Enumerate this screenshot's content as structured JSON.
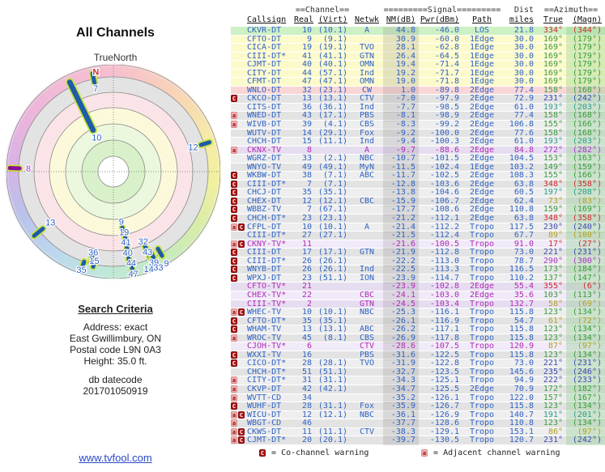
{
  "left": {
    "title": "All Channels",
    "true_north": "TrueNorth",
    "search": {
      "heading": "Search Criteria",
      "lines": [
        "Address: exact",
        "East Gwillimbury, ON",
        "Postal code L9N 0A3",
        "Height: 35.0 ft."
      ],
      "db_label": "db datecode",
      "db_value": "201701050919"
    },
    "link": "www.tvfool.com"
  },
  "radar": {
    "north_label": "N",
    "rings": [
      {
        "r": 132,
        "fill": "none"
      },
      {
        "r": 117,
        "fill": "#e3e3e3"
      },
      {
        "r": 98,
        "fill": "#fbe4e7"
      },
      {
        "r": 79,
        "fill": "#fcf9da"
      },
      {
        "r": 59,
        "fill": "#ecf8de"
      },
      {
        "r": 39,
        "fill": "#d9f1ca"
      },
      {
        "r": 19,
        "fill": "#ffffff"
      }
    ],
    "markers": [
      {
        "label": "N",
        "az": 350,
        "label_r": 125,
        "color": "north"
      },
      {
        "label": "7",
        "az": 348,
        "bar": [
          112,
          124
        ],
        "label_r": 105,
        "color": "blue"
      },
      {
        "label": "10",
        "az": 334,
        "bar": [
          57,
          123
        ],
        "label_r": 47,
        "color": "blue",
        "thick": true
      },
      {
        "label": "12",
        "az": 73,
        "bar": [
          113,
          124
        ],
        "label_r": 103,
        "color": "blue"
      },
      {
        "label": "8",
        "az": 272,
        "bar": [
          116,
          128
        ],
        "label_r": 105,
        "color": "purple"
      },
      {
        "label": "13",
        "az": 231,
        "bar": [
          112,
          126
        ],
        "label_r": 100,
        "color": "blue"
      },
      {
        "label": "9",
        "az": 171,
        "bar": [
          70,
          78
        ],
        "label_r": 63,
        "color": "blue"
      },
      {
        "label": "19",
        "az": 170,
        "bar": [
          83,
          91
        ],
        "label_r": 76,
        "color": "blue"
      },
      {
        "label": "41",
        "az": 170,
        "bar": [
          95,
          103
        ],
        "label_r": 89,
        "color": "blue"
      },
      {
        "label": "40",
        "az": 170,
        "bar": [
          108,
          114
        ],
        "label_r": 102,
        "color": "blue"
      },
      {
        "label": "44",
        "az": 169,
        "bar": [
          120,
          126
        ],
        "label_r": 115,
        "color": "blue"
      },
      {
        "label": "47",
        "az": 169,
        "label_r": 129,
        "color": "blue"
      },
      {
        "label": "36",
        "az": 194,
        "bar": [
          107,
          113
        ],
        "label_r": 103,
        "color": "blue"
      },
      {
        "label": "15",
        "az": 192,
        "bar": [
          114,
          120
        ],
        "label_r": 113,
        "color": "blue"
      },
      {
        "label": "35",
        "az": 198,
        "bar": [
          117,
          125
        ],
        "label_r": 128,
        "color": "blue"
      },
      {
        "label": "32",
        "az": 157,
        "bar": [
          99,
          105
        ],
        "label_r": 94,
        "color": "blue"
      },
      {
        "label": "43",
        "az": 157,
        "bar": [
          110,
          116
        ],
        "label_r": 108,
        "color": "blue"
      },
      {
        "label": "39",
        "az": 156,
        "bar": [
          115,
          121
        ],
        "label_r": 123,
        "color": "blue"
      },
      {
        "label": "14",
        "az": 160,
        "label_r": 128,
        "color": "blue"
      },
      {
        "label": "33",
        "az": 155,
        "bar": [
          108,
          118
        ],
        "label_r": 131,
        "color": "blue"
      },
      {
        "label": "9",
        "az": 150,
        "bar": [
          110,
          120
        ],
        "label_r": 136,
        "color": "blue"
      }
    ],
    "bar_colors": {
      "blue": "#1c5ca8",
      "purple": "#8c109c",
      "halo": "#c9e23c"
    },
    "label_colors": {
      "blue": "#2f62c4",
      "purple": "#a633c6",
      "north": "#d03030"
    }
  },
  "table": {
    "group_headers": {
      "channel": "==Channel==",
      "signal": "=========Signal=========",
      "dist": "Dist",
      "azimuth": "==Azimuth=="
    },
    "columns": [
      "Callsign",
      "Real",
      "(Virt)",
      "Netwk",
      "NM(dB)",
      "Pwr(dBm)",
      "Path",
      "miles",
      "True",
      "(Magn)"
    ],
    "row_fields": [
      "warn",
      "callsign",
      "real",
      "virt",
      "netwk",
      "nm_db",
      "pwr_dbm",
      "path",
      "miles",
      "az_true",
      "az_magn",
      "bg",
      "dir_color",
      "type"
    ],
    "rows": [
      [
        "",
        "CKVR-DT",
        "10",
        "(10.1)",
        "A",
        "44.8",
        "-46.0",
        "LOS",
        "21.8",
        "334°",
        "(344°)",
        "g",
        "r",
        "d"
      ],
      [
        "",
        "CFTO-DT",
        "9",
        "(9.1)",
        "",
        "30.9",
        "-60.0",
        "1Edge",
        "30.0",
        "169°",
        "(179°)",
        "y",
        "g",
        "d"
      ],
      [
        "",
        "CICA-DT",
        "19",
        "(19.1)",
        "TVO",
        "28.1",
        "-62.8",
        "1Edge",
        "30.0",
        "169°",
        "(179°)",
        "y",
        "g",
        "d"
      ],
      [
        "",
        "CIII-DT*",
        "41",
        "(41.1)",
        "GTN",
        "26.4",
        "-64.5",
        "1Edge",
        "30.0",
        "169°",
        "(179°)",
        "y",
        "g",
        "d"
      ],
      [
        "",
        "CJMT-DT",
        "40",
        "(40.1)",
        "OMN",
        "19.4",
        "-71.4",
        "1Edge",
        "30.0",
        "169°",
        "(179°)",
        "y",
        "g",
        "d"
      ],
      [
        "",
        "CITY-DT",
        "44",
        "(57.1)",
        "Ind",
        "19.2",
        "-71.7",
        "1Edge",
        "30.0",
        "169°",
        "(179°)",
        "y",
        "g",
        "d"
      ],
      [
        "",
        "CFMT-DT",
        "47",
        "(47.1)",
        "OMN",
        "19.0",
        "-71.8",
        "1Edge",
        "30.0",
        "169°",
        "(179°)",
        "y",
        "g",
        "d"
      ],
      [
        "",
        "WNLO-DT",
        "32",
        "(23.1)",
        "CW",
        "1.0",
        "-89.8",
        "2Edge",
        "77.4",
        "158°",
        "(168°)",
        "p",
        "g",
        "d"
      ],
      [
        "C",
        "CKCO-DT",
        "13",
        "(13.1)",
        "CTV",
        "-7.0",
        "-97.9",
        "2Edge",
        "72.9",
        "231°",
        "(242°)",
        "d",
        "n",
        "d"
      ],
      [
        "",
        "CITS-DT",
        "36",
        "(36.1)",
        "Ind",
        "-7.7",
        "-98.5",
        "2Edge",
        "61.0",
        "193°",
        "(203°)",
        "l",
        "t",
        "d"
      ],
      [
        "A",
        "WNED-DT",
        "43",
        "(17.1)",
        "PBS",
        "-8.1",
        "-98.9",
        "2Edge",
        "77.4",
        "158°",
        "(168°)",
        "d",
        "g",
        "d"
      ],
      [
        "A",
        "WIVB-DT",
        "39",
        "(4.1)",
        "CBS",
        "-8.3",
        "-99.2",
        "2Edge",
        "106.8",
        "155°",
        "(166°)",
        "l",
        "g",
        "d"
      ],
      [
        "",
        "WUTV-DT",
        "14",
        "(29.1)",
        "Fox",
        "-9.2",
        "-100.0",
        "2Edge",
        "77.6",
        "158°",
        "(168°)",
        "d",
        "g",
        "d"
      ],
      [
        "",
        "CHCH-DT",
        "15",
        "(11.1)",
        "Ind",
        "-9.4",
        "-100.3",
        "2Edge",
        "61.0",
        "193°",
        "(203°)",
        "l",
        "t",
        "d"
      ],
      [
        "A",
        "CKNX-TV",
        "8",
        "",
        "A",
        "-9.7",
        "-88.6",
        "2Edge",
        "84.8",
        "272°",
        "(282°)",
        "ad",
        "p",
        "a"
      ],
      [
        "",
        "WGRZ-DT",
        "33",
        "(2.1)",
        "NBC",
        "-10.7",
        "-101.5",
        "2Edge",
        "104.5",
        "153°",
        "(163°)",
        "l",
        "g",
        "d"
      ],
      [
        "",
        "WNYO-TV",
        "49",
        "(49.1)",
        "MyN",
        "-11.5",
        "-102.4",
        "1Edge",
        "103.2",
        "149°",
        "(159°)",
        "d",
        "g",
        "d"
      ],
      [
        "C",
        "WKBW-DT",
        "38",
        "(7.1)",
        "ABC",
        "-11.7",
        "-102.5",
        "2Edge",
        "108.3",
        "155°",
        "(166°)",
        "l",
        "g",
        "d"
      ],
      [
        "C",
        "CIII-DT*",
        "7",
        "(7.1)",
        "",
        "-12.8",
        "-103.6",
        "2Edge",
        "63.8",
        "348°",
        "(358°)",
        "d",
        "r",
        "d"
      ],
      [
        "C",
        "CHCJ-DT",
        "35",
        "(35.1)",
        "",
        "-13.8",
        "-104.6",
        "2Edge",
        "60.5",
        "197°",
        "(208°)",
        "l",
        "t",
        "d"
      ],
      [
        "C",
        "CHEX-DT",
        "12",
        "(12.1)",
        "CBC",
        "-15.9",
        "-106.7",
        "2Edge",
        "62.4",
        "73°",
        "(83°)",
        "d",
        "y",
        "d"
      ],
      [
        "C",
        "WBBZ-TV",
        "7",
        "(67.1)",
        "",
        "-17.7",
        "-108.6",
        "2Edge",
        "110.8",
        "159°",
        "(169°)",
        "l",
        "g",
        "d"
      ],
      [
        "C",
        "CHCH-DT*",
        "23",
        "(23.1)",
        "",
        "-21.2",
        "-112.1",
        "2Edge",
        "63.8",
        "348°",
        "(358°)",
        "d",
        "r",
        "d"
      ],
      [
        "AC",
        "CFPL-DT",
        "10",
        "(10.1)",
        "A",
        "-21.4",
        "-112.2",
        "Tropo",
        "117.5",
        "230°",
        "(240°)",
        "l",
        "n",
        "d"
      ],
      [
        "",
        "CIII-DT*",
        "27",
        "(27.1)",
        "",
        "-21.5",
        "-112.4",
        "Tropo",
        "67.7",
        "89°",
        "(100°)",
        "d",
        "y",
        "d"
      ],
      [
        "AC",
        "CKNY-TV*",
        "11",
        "",
        "",
        "-21.6",
        "-100.5",
        "Tropo",
        "91.0",
        "17°",
        "(27°)",
        "al",
        "r",
        "a"
      ],
      [
        "C",
        "CIII-DT",
        "17",
        "(17.1)",
        "GTN",
        "-21.9",
        "-112.8",
        "Tropo",
        "73.0",
        "221°",
        "(231°)",
        "d",
        "n",
        "d"
      ],
      [
        "C",
        "CIII-DT*",
        "26",
        "(26.1)",
        "",
        "-22.2",
        "-113.0",
        "Tropo",
        "78.7",
        "290°",
        "(300°)",
        "l",
        "p",
        "d"
      ],
      [
        "C",
        "WNYB-DT",
        "26",
        "(26.1)",
        "Ind",
        "-22.5",
        "-113.3",
        "Tropo",
        "116.5",
        "173°",
        "(184°)",
        "d",
        "g",
        "d"
      ],
      [
        "C",
        "WPXJ-DT",
        "23",
        "(51.1)",
        "ION",
        "-23.9",
        "-114.7",
        "Tropo",
        "110.2",
        "137°",
        "(147°)",
        "l",
        "g",
        "d"
      ],
      [
        "",
        "CFTO-TV*",
        "21",
        "",
        "",
        "-23.9",
        "-102.8",
        "2Edge",
        "55.4",
        "355°",
        "(6°)",
        "ad",
        "r",
        "a"
      ],
      [
        "",
        "CHEX-TV*",
        "22",
        "",
        "CBC",
        "-24.1",
        "-103.0",
        "2Edge",
        "35.6",
        "103°",
        "(113°)",
        "al",
        "g",
        "a"
      ],
      [
        "",
        "CIII-TV*",
        "2",
        "",
        "GTN",
        "-24.5",
        "-103.4",
        "Tropo",
        "132.7",
        "58°",
        "(69°)",
        "ad",
        "y",
        "a"
      ],
      [
        "AC",
        "WHEC-TV",
        "10",
        "(10.1)",
        "NBC",
        "-25.3",
        "-116.1",
        "Tropo",
        "115.8",
        "123°",
        "(134°)",
        "l",
        "g",
        "d"
      ],
      [
        "C",
        "CFTO-DT*",
        "35",
        "(35.1)",
        "",
        "-26.1",
        "-116.9",
        "Tropo",
        "54.7",
        "61°",
        "(72°)",
        "d",
        "y",
        "d"
      ],
      [
        "C",
        "WHAM-TV",
        "13",
        "(13.1)",
        "ABC",
        "-26.2",
        "-117.1",
        "Tropo",
        "115.8",
        "123°",
        "(134°)",
        "l",
        "g",
        "d"
      ],
      [
        "A",
        "WROC-TV",
        "45",
        "(8.1)",
        "CBS",
        "-26.9",
        "-117.8",
        "Tropo",
        "115.8",
        "123°",
        "(134°)",
        "d",
        "g",
        "d"
      ],
      [
        "",
        "CJOH-TV*",
        "6",
        "",
        "CTV",
        "-28.6",
        "-107.5",
        "Tropo",
        "120.9",
        "87°",
        "(97°)",
        "al",
        "y",
        "a"
      ],
      [
        "C",
        "WXXI-TV",
        "16",
        "",
        "PBS",
        "-31.6",
        "-122.5",
        "Tropo",
        "115.8",
        "123°",
        "(134°)",
        "d",
        "g",
        "d"
      ],
      [
        "C",
        "CICO-DT*",
        "28",
        "(28.1)",
        "TVO",
        "-31.9",
        "-122.8",
        "Tropo",
        "73.0",
        "221°",
        "(231°)",
        "l",
        "n",
        "d"
      ],
      [
        "",
        "CHCH-DT*",
        "51",
        "(51.1)",
        "",
        "-32.7",
        "-123.5",
        "Tropo",
        "145.6",
        "235°",
        "(246°)",
        "d",
        "n",
        "d"
      ],
      [
        "A",
        "CITY-DT*",
        "31",
        "(31.1)",
        "",
        "-34.3",
        "-125.1",
        "Tropo",
        "94.9",
        "222°",
        "(233°)",
        "l",
        "n",
        "d"
      ],
      [
        "A",
        "CKVP-DT",
        "42",
        "(42.1)",
        "",
        "-34.7",
        "-125.5",
        "2Edge",
        "70.9",
        "172°",
        "(182°)",
        "d",
        "g",
        "d"
      ],
      [
        "A",
        "WVTT-CD",
        "34",
        "",
        "",
        "-35.2",
        "-126.1",
        "Tropo",
        "122.0",
        "157°",
        "(167°)",
        "l",
        "g",
        "d"
      ],
      [
        "C",
        "WUHF-DT",
        "28",
        "(31.1)",
        "Fox",
        "-35.9",
        "-126.7",
        "Tropo",
        "115.8",
        "123°",
        "(134°)",
        "d",
        "g",
        "d"
      ],
      [
        "AC",
        "WICU-DT",
        "12",
        "(12.1)",
        "NBC",
        "-36.1",
        "-126.9",
        "Tropo",
        "140.7",
        "191°",
        "(201°)",
        "l",
        "t",
        "d"
      ],
      [
        "A",
        "WBGT-CD",
        "46",
        "",
        "",
        "-37.7",
        "-128.6",
        "Tropo",
        "110.8",
        "123°",
        "(134°)",
        "d",
        "g",
        "d"
      ],
      [
        "AC",
        "CKWS-DT",
        "11",
        "(11.1)",
        "CTV",
        "-38.3",
        "-129.1",
        "Tropo",
        "153.1",
        "86°",
        "(97°)",
        "l",
        "y",
        "d"
      ],
      [
        "AC",
        "CJMT-DT*",
        "20",
        "(20.1)",
        "",
        "-39.7",
        "-130.5",
        "Tropo",
        "120.7",
        "231°",
        "(242°)",
        "d",
        "n",
        "d"
      ]
    ]
  },
  "legend": {
    "co_icon": "C",
    "co_text": "= Co-channel warning",
    "adj_icon": "a",
    "adj_text": "= Adjacent channel warning"
  }
}
